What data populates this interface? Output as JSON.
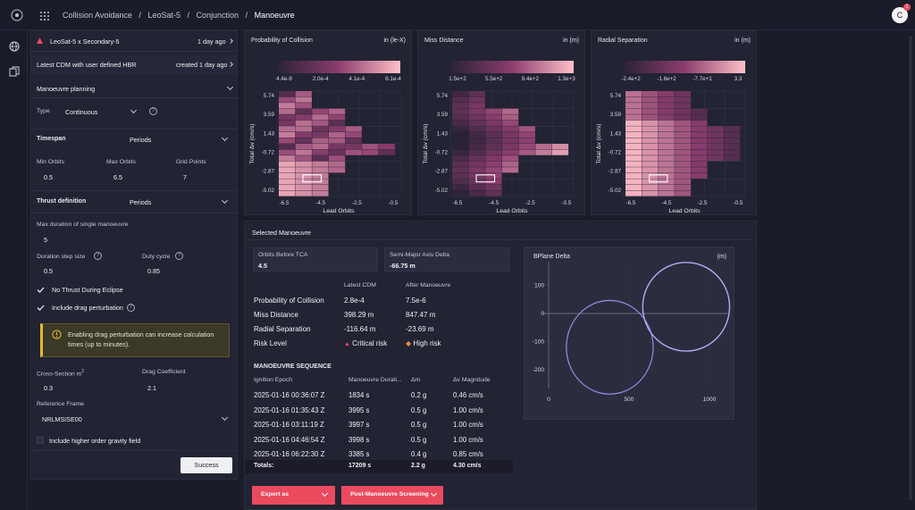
{
  "breadcrumb": [
    "Collision Avoidance",
    "LeoSat-5",
    "Conjunction",
    "Manoeuvre"
  ],
  "breadcrumb_sep": "/",
  "avatar": {
    "letter": "C",
    "badge": "1"
  },
  "left": {
    "conj_title": "LeoSat-5 x Secondary-5",
    "conj_time": "1 day ago",
    "cdm_label": "Latest CDM with user defined HBR",
    "cdm_time": "created 1 day ago",
    "planning_label": "Manoeuvre planning",
    "type_label": "Type",
    "type_value": "Continuous",
    "timespan_label": "Timespan",
    "timespan_value": "Periods",
    "min_orbits_label": "Min Orbits",
    "min_orbits": "0.5",
    "max_orbits_label": "Max Orbits",
    "max_orbits": "6.5",
    "grid_points_label": "Grid Points",
    "grid_points": "7",
    "thrust_label": "Thrust definition",
    "thrust_value": "Periods",
    "max_dur_label": "Max duration of single manoeuvre",
    "max_dur": "5",
    "step_label": "Duration step size",
    "step": "0.5",
    "duty_label": "Duty cycle",
    "duty": "0.85",
    "no_thrust_label": "No Thrust During Eclipse",
    "drag_label": "Include drag perturbation",
    "warning": "Enabling drag perturbation can increase calculation times (up to minutes).",
    "cross_label": "Cross-Section m",
    "cross_sup": "2",
    "cross": "0.3",
    "drag_coef_label": "Drag Coefficient",
    "drag_coef": "2.1",
    "ref_frame_label": "Reference Frame",
    "ref_frame": "NRLMSISE00",
    "gravity_label": "Include higher order gravity field",
    "success": "Success"
  },
  "heatmaps": [
    {
      "title": "Probability of Collision",
      "unit": "in (le-X)",
      "scale": [
        "4.4e-9",
        "2.0e-4",
        "4.1e-4",
        "6.1e-4"
      ],
      "ytitle": "Total Δv (cm/s)",
      "xtitle": "Lead Orbits",
      "yticks": [
        "5.74",
        "3.59",
        "1.43",
        "-0.72",
        "-2.87",
        "-5.02"
      ],
      "xticks": [
        "-6.5",
        "-4.5",
        "-2.5",
        "-0.5"
      ]
    },
    {
      "title": "Miss Distance",
      "unit": "in (m)",
      "scale": [
        "1.5e+2",
        "5.5e+2",
        "9.4e+2",
        "1.3e+3"
      ],
      "ytitle": "Total Δv (cm/s)",
      "xtitle": "Lead Orbits",
      "yticks": [
        "5.74",
        "3.59",
        "1.43",
        "-0.72",
        "-2.87",
        "-5.02"
      ],
      "xticks": [
        "-6.5",
        "-4.5",
        "-2.5",
        "-0.5"
      ]
    },
    {
      "title": "Radial Separation",
      "unit": "in (m)",
      "scale": [
        "-2.4e+2",
        "-1.6e+2",
        "-7.7e+1",
        "3.3"
      ],
      "ytitle": "Total Δv (cm/s)",
      "xtitle": "Lead Orbits",
      "yticks": [
        "5.74",
        "3.59",
        "1.43",
        "-0.72",
        "-2.87",
        "-5.02"
      ],
      "xticks": [
        "-6.5",
        "-4.5",
        "-2.5",
        "-0.5"
      ]
    }
  ],
  "selected": {
    "title": "Selected Manoeuvre",
    "orbits_label": "Orbits Before TCA",
    "orbits": "4.5",
    "sma_label": "Semi-Major Axis Delta",
    "sma": "-66.75 m",
    "col_latest": "Latest CDM",
    "col_after": "After Manoeuvre",
    "rows": [
      {
        "label": "Probability of Collision",
        "latest": "2.8e-4",
        "after": "7.5e-6"
      },
      {
        "label": "Miss Distance",
        "latest": "398.29 m",
        "after": "847.47 m"
      },
      {
        "label": "Radial Separation",
        "latest": "-116.64 m",
        "after": "-23.69 m"
      },
      {
        "label": "Risk Level",
        "latest": "Critical risk",
        "after": "High risk"
      }
    ],
    "seq_title": "MANOEUVRE SEQUENCE",
    "seq_cols": [
      "Ignition Epoch",
      "Manoeuvre Durati...",
      "Δm",
      "Δv Magnitude"
    ],
    "seq_rows": [
      [
        "2025-01-16 00:36:07 Z",
        "1834 s",
        "0.2 g",
        "0.46 cm/s"
      ],
      [
        "2025-01-16 01:35:43 Z",
        "3995 s",
        "0.5 g",
        "1.00 cm/s"
      ],
      [
        "2025-01-16 03:11:19 Z",
        "3997 s",
        "0.5 g",
        "1.00 cm/s"
      ],
      [
        "2025-01-16 04:46:54 Z",
        "3998 s",
        "0.5 g",
        "1.00 cm/s"
      ],
      [
        "2025-01-16 06:22:30 Z",
        "3385 s",
        "0.4 g",
        "0.85 cm/s"
      ]
    ],
    "totals": [
      "Totals:",
      "17209 s",
      "2.2 g",
      "4.30 cm/s"
    ],
    "export": "Export as",
    "screening": "Post-Manoeuvre Screening"
  },
  "bplane": {
    "title": "BPlane Delta",
    "unit": "(m)",
    "yticks": [
      "100",
      "0",
      "-100",
      "-200"
    ],
    "xticks": [
      "0",
      "500",
      "1000"
    ]
  },
  "colors": {
    "accent": "#ea4a5e",
    "warning": "#e6b830",
    "critical": "#ea4a5e",
    "high": "#f08a3c",
    "circle": "#9a8ae8"
  }
}
